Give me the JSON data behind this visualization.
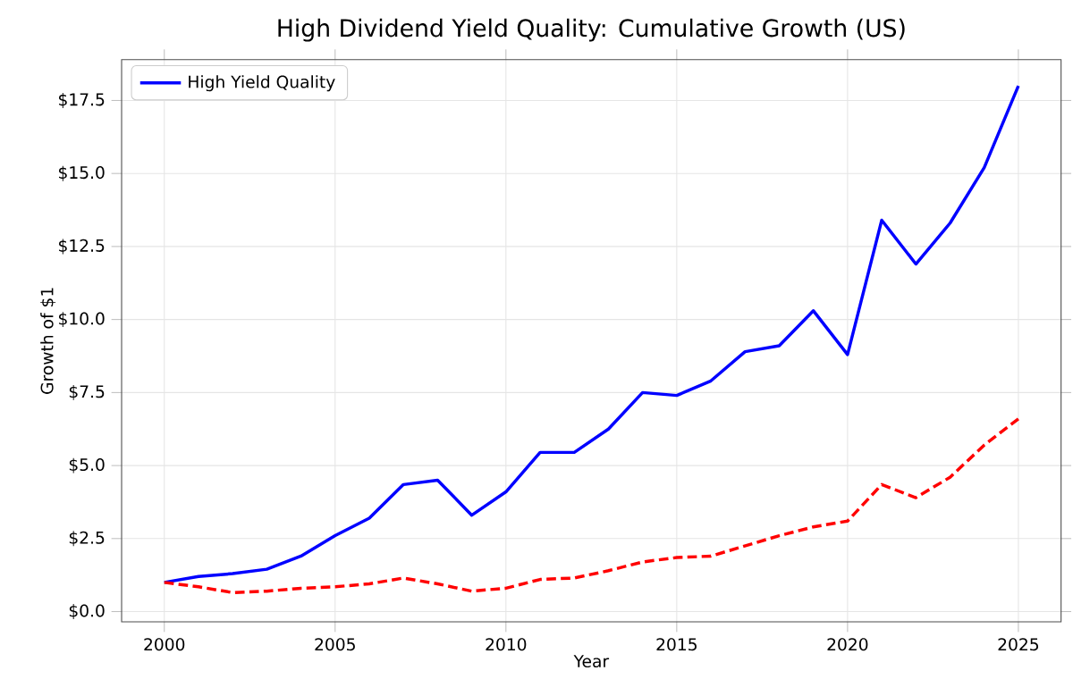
{
  "chart_data": {
    "type": "line",
    "title": "High Dividend Yield Quality: Cumulative Growth (US)",
    "xlabel": "Year",
    "ylabel": "Growth of $1",
    "x": [
      2000,
      2001,
      2002,
      2003,
      2004,
      2005,
      2006,
      2007,
      2008,
      2009,
      2010,
      2011,
      2012,
      2013,
      2014,
      2015,
      2016,
      2017,
      2018,
      2019,
      2020,
      2021,
      2022,
      2023,
      2024,
      2025
    ],
    "series": [
      {
        "name": "High Yield Quality",
        "color": "#0000ff",
        "line_style": "solid",
        "values": [
          1.0,
          1.2,
          1.3,
          1.45,
          1.9,
          2.6,
          3.2,
          4.35,
          4.5,
          3.3,
          4.1,
          5.45,
          5.45,
          6.25,
          7.5,
          7.4,
          7.9,
          8.9,
          9.1,
          10.3,
          8.8,
          13.4,
          11.9,
          13.3,
          15.2,
          18.0
        ]
      },
      {
        "color": "#ff0000",
        "line_style": "dashed",
        "values": [
          1.0,
          0.85,
          0.65,
          0.7,
          0.8,
          0.85,
          0.95,
          1.15,
          0.95,
          0.7,
          0.8,
          1.1,
          1.15,
          1.4,
          1.7,
          1.85,
          1.9,
          2.25,
          2.6,
          2.9,
          3.1,
          4.35,
          3.9,
          4.6,
          5.7,
          6.6
        ]
      }
    ],
    "xlim": [
      1998.75,
      2026.25
    ],
    "ylim": [
      -0.35,
      18.9
    ],
    "xticks": [
      2000,
      2005,
      2010,
      2015,
      2020,
      2025
    ],
    "yticks": [
      {
        "value": 0,
        "label": "$0.0"
      },
      {
        "value": 2.5,
        "label": "$2.5"
      },
      {
        "value": 5,
        "label": "$5.0"
      },
      {
        "value": 7.5,
        "label": "$7.5"
      },
      {
        "value": 10,
        "label": "$10.0"
      },
      {
        "value": 12.5,
        "label": "$12.5"
      },
      {
        "value": 15,
        "label": "$15.0"
      },
      {
        "value": 17.5,
        "label": "$17.5"
      }
    ],
    "grid": true,
    "legend": "top left",
    "marker": "none"
  }
}
